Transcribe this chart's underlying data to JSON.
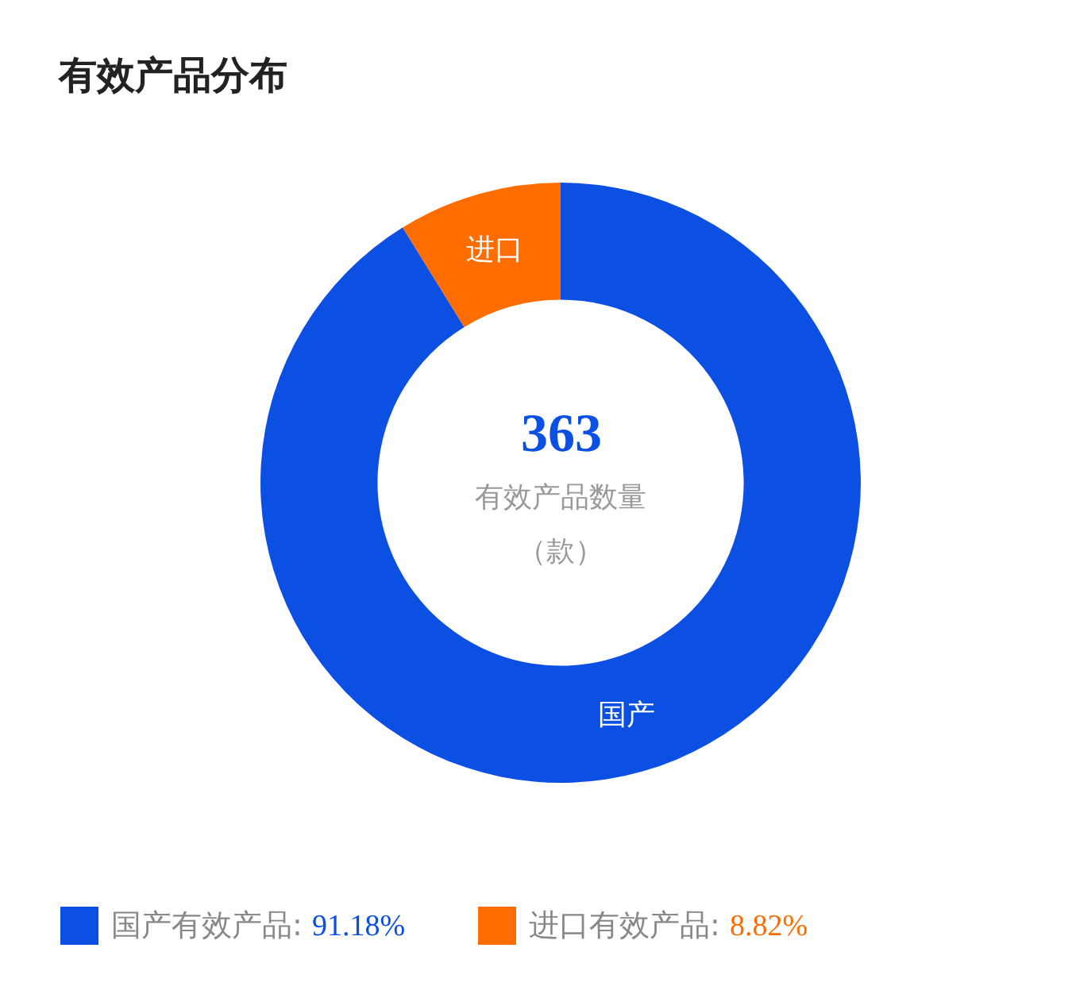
{
  "chart_data": {
    "type": "donut",
    "title": "有效产品分布",
    "categories": [
      "国产",
      "进口"
    ],
    "values": [
      91.18,
      8.82
    ],
    "colors": [
      "#0b4fe3",
      "#ff6d00"
    ],
    "annotations": [
      "363",
      "有效产品数量",
      "（款）",
      "国产有效产品:",
      "91.18%",
      "进口有效产品:",
      "8.82%"
    ]
  }
}
